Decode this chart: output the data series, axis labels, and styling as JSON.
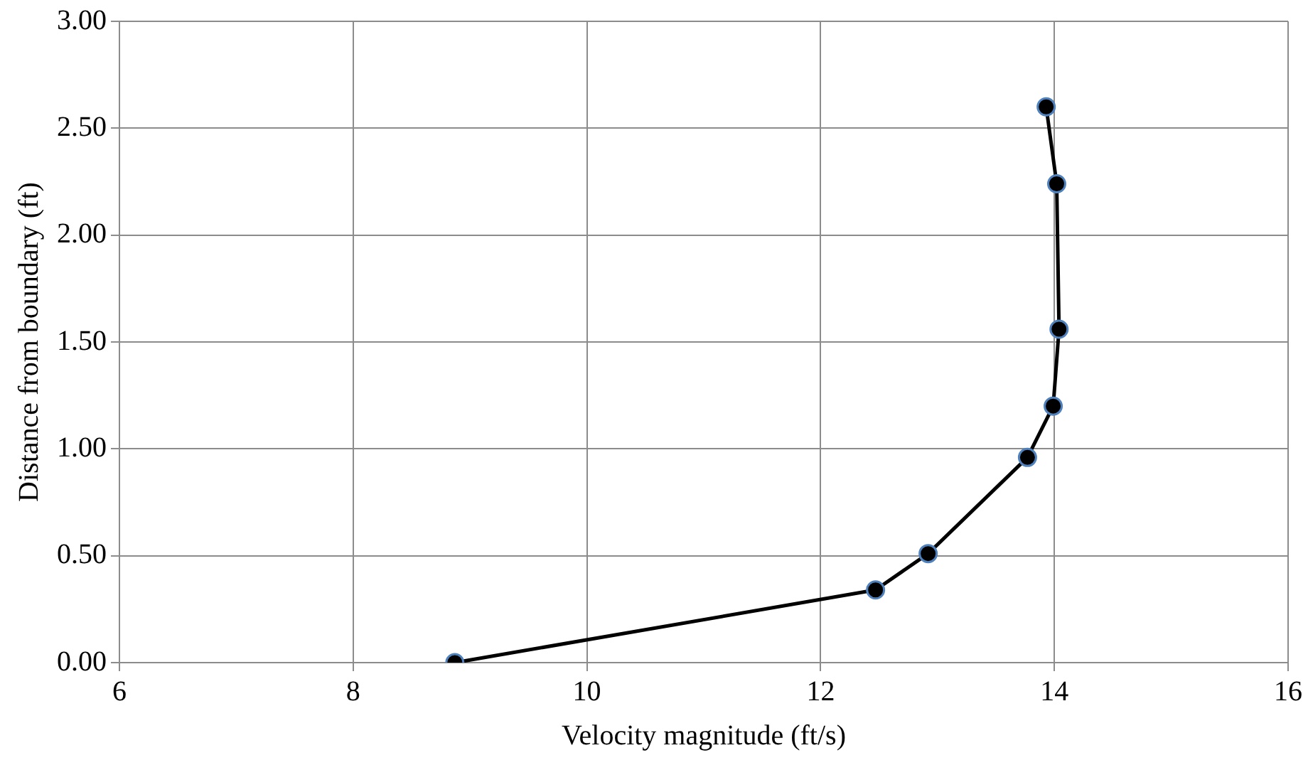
{
  "chart_data": {
    "type": "line",
    "xlabel": "Velocity magnitude (ft/s)",
    "ylabel": "Distance from boundary (ft)",
    "x": [
      8.87,
      12.47,
      12.92,
      13.77,
      13.99,
      14.04,
      14.02,
      13.93
    ],
    "values": [
      0,
      0.34,
      0.51,
      0.96,
      1.2,
      1.56,
      2.24,
      2.6
    ],
    "color": "#000000",
    "xlim": [
      6,
      16
    ],
    "xticks": [
      6,
      8,
      10,
      12,
      14,
      16
    ],
    "ylim": [
      0,
      3
    ],
    "yticks": [
      {
        "value": 0,
        "label": "0.00"
      },
      {
        "value": 0.5,
        "label": "0.50"
      },
      {
        "value": 1,
        "label": "1.00"
      },
      {
        "value": 1.5,
        "label": "1.50"
      },
      {
        "value": 2,
        "label": "2.00"
      },
      {
        "value": 2.5,
        "label": "2.50"
      },
      {
        "value": 3,
        "label": "3.00"
      }
    ],
    "grid": true,
    "marker": "circle",
    "line_style": "solid",
    "legend": false
  }
}
